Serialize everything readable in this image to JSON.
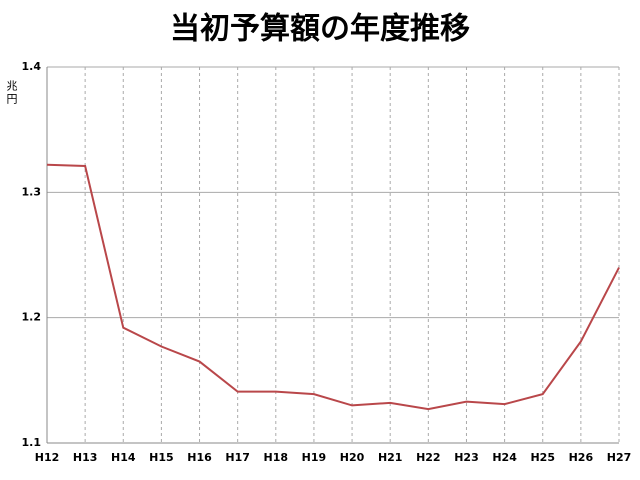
{
  "chart_data": {
    "type": "line",
    "title": "当初予算額の年度推移",
    "y_label": "兆円",
    "categories": [
      "H12",
      "H13",
      "H14",
      "H15",
      "H16",
      "H17",
      "H18",
      "H19",
      "H20",
      "H21",
      "H22",
      "H23",
      "H24",
      "H25",
      "H26",
      "H27"
    ],
    "values": [
      1.322,
      1.321,
      1.192,
      1.177,
      1.165,
      1.141,
      1.141,
      1.139,
      1.13,
      1.132,
      1.127,
      1.133,
      1.131,
      1.139,
      1.181,
      1.24
    ],
    "color": "#b9474a",
    "ylim": [
      1.1,
      1.4
    ],
    "yticks": [
      1.1,
      1.2,
      1.3,
      1.4
    ],
    "grid": true
  }
}
